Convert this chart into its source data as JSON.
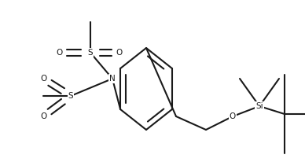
{
  "bg_color": "#ffffff",
  "line_color": "#1a1a1a",
  "line_width": 1.5,
  "font_size": 7.5,
  "figsize": [
    3.88,
    2.06
  ],
  "dpi": 100,
  "xlim": [
    0,
    388
  ],
  "ylim": [
    0,
    206
  ]
}
